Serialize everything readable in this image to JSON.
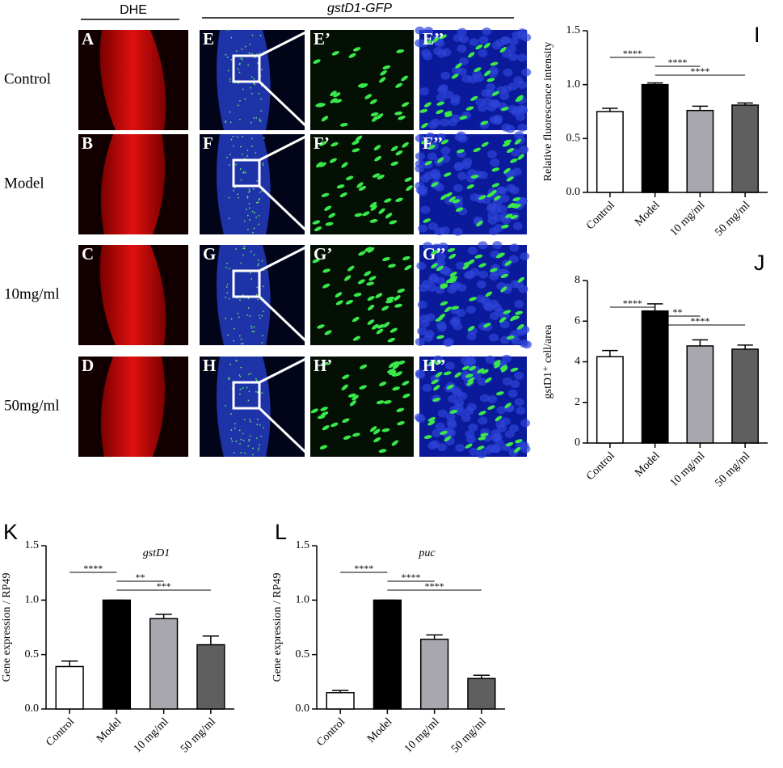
{
  "micrographs": {
    "headers": [
      "DHE",
      "gstD1-GFP"
    ],
    "rows": [
      {
        "label": "Control",
        "panels": [
          "A",
          "E",
          "E’",
          "E’’"
        ]
      },
      {
        "label": "Model",
        "panels": [
          "B",
          "F",
          "F’",
          "F’’"
        ]
      },
      {
        "label": "10mg/ml",
        "panels": [
          "C",
          "G",
          "G’",
          "G’’"
        ]
      },
      {
        "label": "50mg/ml",
        "panels": [
          "D",
          "H",
          "H’",
          "H’’"
        ]
      }
    ]
  },
  "chart_data": [
    {
      "type": "bar",
      "panel": "I",
      "ylabel": "Relative fluorescence intensity",
      "categories": [
        "Control",
        "Model",
        "10 mg/ml",
        "50 mg/ml"
      ],
      "values": [
        0.75,
        1.0,
        0.76,
        0.81
      ],
      "errors": [
        0.03,
        0.015,
        0.04,
        0.02
      ],
      "colors": [
        "#ffffff",
        "#000000",
        "#a7a7ad",
        "#5f5f5f"
      ],
      "ylim": [
        0,
        1.5
      ],
      "yticks": [
        {
          "value": 0,
          "label": "0.0"
        },
        0.5,
        {
          "value": 1,
          "label": "1.0"
        },
        1.5
      ],
      "significance": [
        "****",
        "****",
        "****"
      ]
    },
    {
      "type": "bar",
      "panel": "J",
      "ylabel": "gstD1⁺ cell/area",
      "categories": [
        "Control",
        "Model",
        "10 mg/ml",
        "50 mg/ml"
      ],
      "values": [
        4.25,
        6.5,
        4.78,
        4.62
      ],
      "errors": [
        0.3,
        0.35,
        0.3,
        0.2
      ],
      "colors": [
        "#ffffff",
        "#000000",
        "#a7a7ad",
        "#5f5f5f"
      ],
      "ylim": [
        0,
        8
      ],
      "yticks": [
        0,
        2,
        4,
        6,
        8
      ],
      "significance": [
        "****",
        "**",
        "****"
      ]
    },
    {
      "type": "bar",
      "panel": "K",
      "title": "gstD1",
      "ylabel": "Gene expression / RP49",
      "categories": [
        "Control",
        "Model",
        "10 mg/ml",
        "50 mg/ml"
      ],
      "values": [
        0.39,
        1.0,
        0.83,
        0.59
      ],
      "errors": [
        0.05,
        0,
        0.04,
        0.08
      ],
      "colors": [
        "#ffffff",
        "#000000",
        "#a7a7ad",
        "#5f5f5f"
      ],
      "ylim": [
        0,
        1.5
      ],
      "yticks": [
        {
          "value": 0,
          "label": "0.0"
        },
        0.5,
        {
          "value": 1,
          "label": "1.0"
        },
        1.5
      ],
      "significance": [
        "****",
        "**",
        "***"
      ]
    },
    {
      "type": "bar",
      "panel": "L",
      "title": "puc",
      "ylabel": "Gene expression / RP49",
      "categories": [
        "Control",
        "Model",
        "10 mg/ml",
        "50 mg/ml"
      ],
      "values": [
        0.15,
        1.0,
        0.64,
        0.28
      ],
      "errors": [
        0.02,
        0,
        0.04,
        0.03
      ],
      "colors": [
        "#ffffff",
        "#000000",
        "#a7a7ad",
        "#5f5f5f"
      ],
      "ylim": [
        0,
        1.5
      ],
      "yticks": [
        {
          "value": 0,
          "label": "0.0"
        },
        0.5,
        {
          "value": 1,
          "label": "1.0"
        },
        1.5
      ],
      "significance": [
        "****",
        "****",
        "****"
      ]
    }
  ]
}
